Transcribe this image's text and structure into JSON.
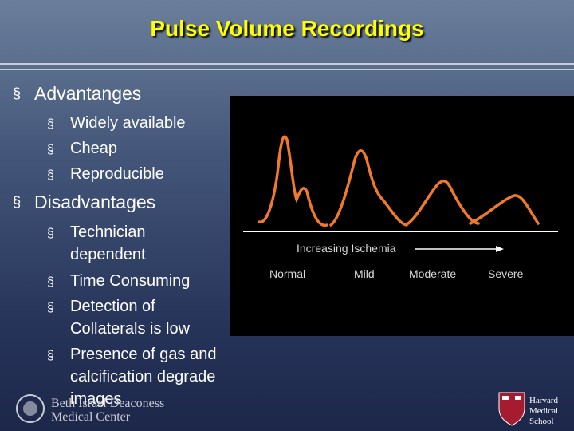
{
  "header": {
    "title": "Pulse Volume Recordings"
  },
  "marker": "§",
  "bullets": [
    {
      "text": "Advantanges",
      "sub": [
        "Widely available",
        "Cheap",
        "Reproducible"
      ]
    },
    {
      "text": "Disadvantages",
      "sub": [
        "Technician dependent",
        "Time Consuming",
        "Detection of Collaterals is low",
        "Presence of gas and calcification degrade images"
      ]
    }
  ],
  "figure": {
    "arrow_label": "Increasing Ischemia",
    "labels": [
      "Normal",
      "Mild",
      "Moderate",
      "Severe"
    ]
  },
  "footer": {
    "left_logo": [
      "Beth Israel Deaconess",
      "Medical Center"
    ],
    "right_logo": [
      "Harvard",
      "Medical",
      "School"
    ]
  }
}
